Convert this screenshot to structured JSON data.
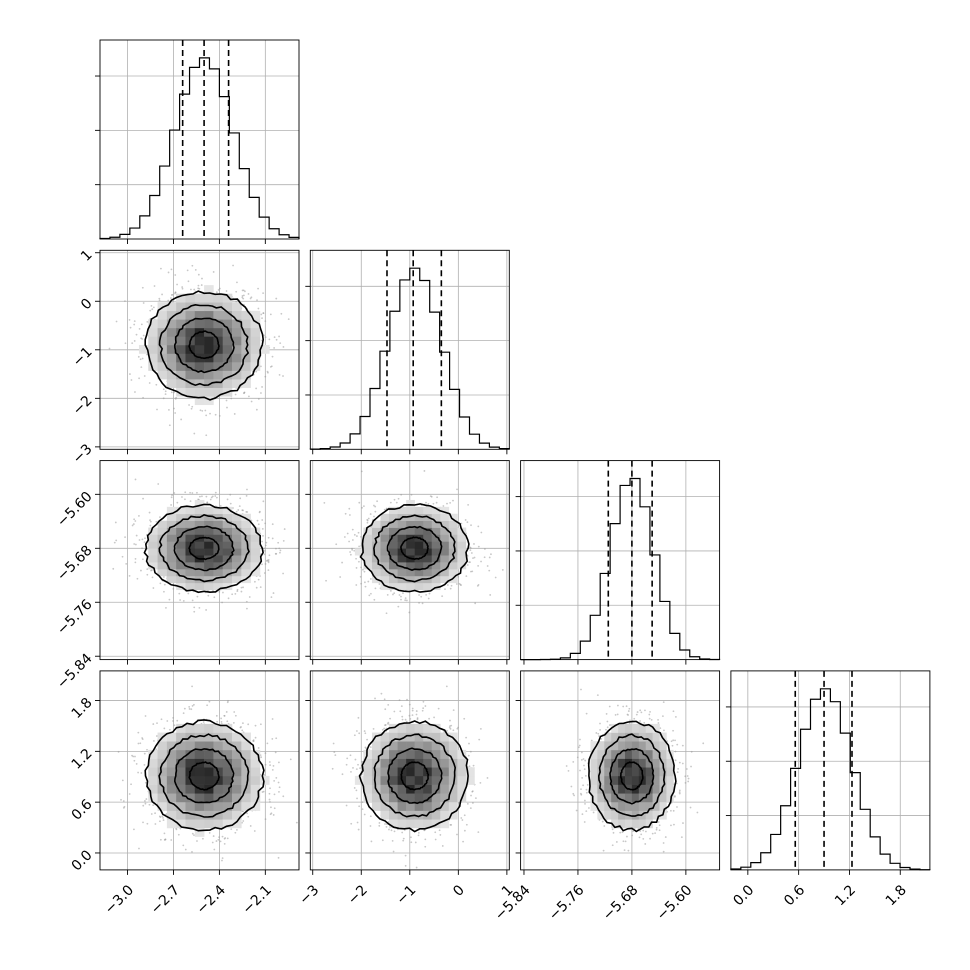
{
  "chart_data": {
    "type": "corner",
    "title": "",
    "grid": true,
    "parameters": [
      {
        "mean": -2.5,
        "std": 0.19,
        "range": [
          -3.18,
          -1.88
        ],
        "quantiles": [
          -2.64,
          -2.5,
          -2.34
        ],
        "ticks": [
          -3.0,
          -2.7,
          -2.4,
          -2.1
        ],
        "tick_labels": [
          "−3.0",
          "−2.7",
          "−2.4",
          "−2.1"
        ]
      },
      {
        "mean": -0.9,
        "std": 0.55,
        "range": [
          -3.05,
          1.05
        ],
        "quantiles": [
          -1.47,
          -0.93,
          -0.35
        ],
        "ticks": [
          -3,
          -2,
          -1,
          0,
          1
        ],
        "tick_labels": [
          "−3",
          "−2",
          "−1",
          "0",
          "1"
        ]
      },
      {
        "mean": -5.68,
        "std": 0.032,
        "range": [
          -5.845,
          -5.55
        ],
        "quantiles": [
          -5.715,
          -5.68,
          -5.65
        ],
        "ticks": [
          -5.84,
          -5.76,
          -5.68,
          -5.6
        ],
        "tick_labels": [
          "−5.84",
          "−5.76",
          "−5.68",
          "−5.60"
        ]
      },
      {
        "mean": 0.91,
        "std": 0.32,
        "range": [
          -0.2,
          2.15
        ],
        "quantiles": [
          0.56,
          0.9,
          1.23
        ],
        "ticks": [
          0.0,
          0.6,
          1.2,
          1.8
        ],
        "tick_labels": [
          "0.0",
          "0.6",
          "1.2",
          "1.8"
        ]
      }
    ],
    "histogram_bins": 20,
    "contour_levels": [
      0.118,
      0.393,
      0.675,
      0.865
    ]
  }
}
